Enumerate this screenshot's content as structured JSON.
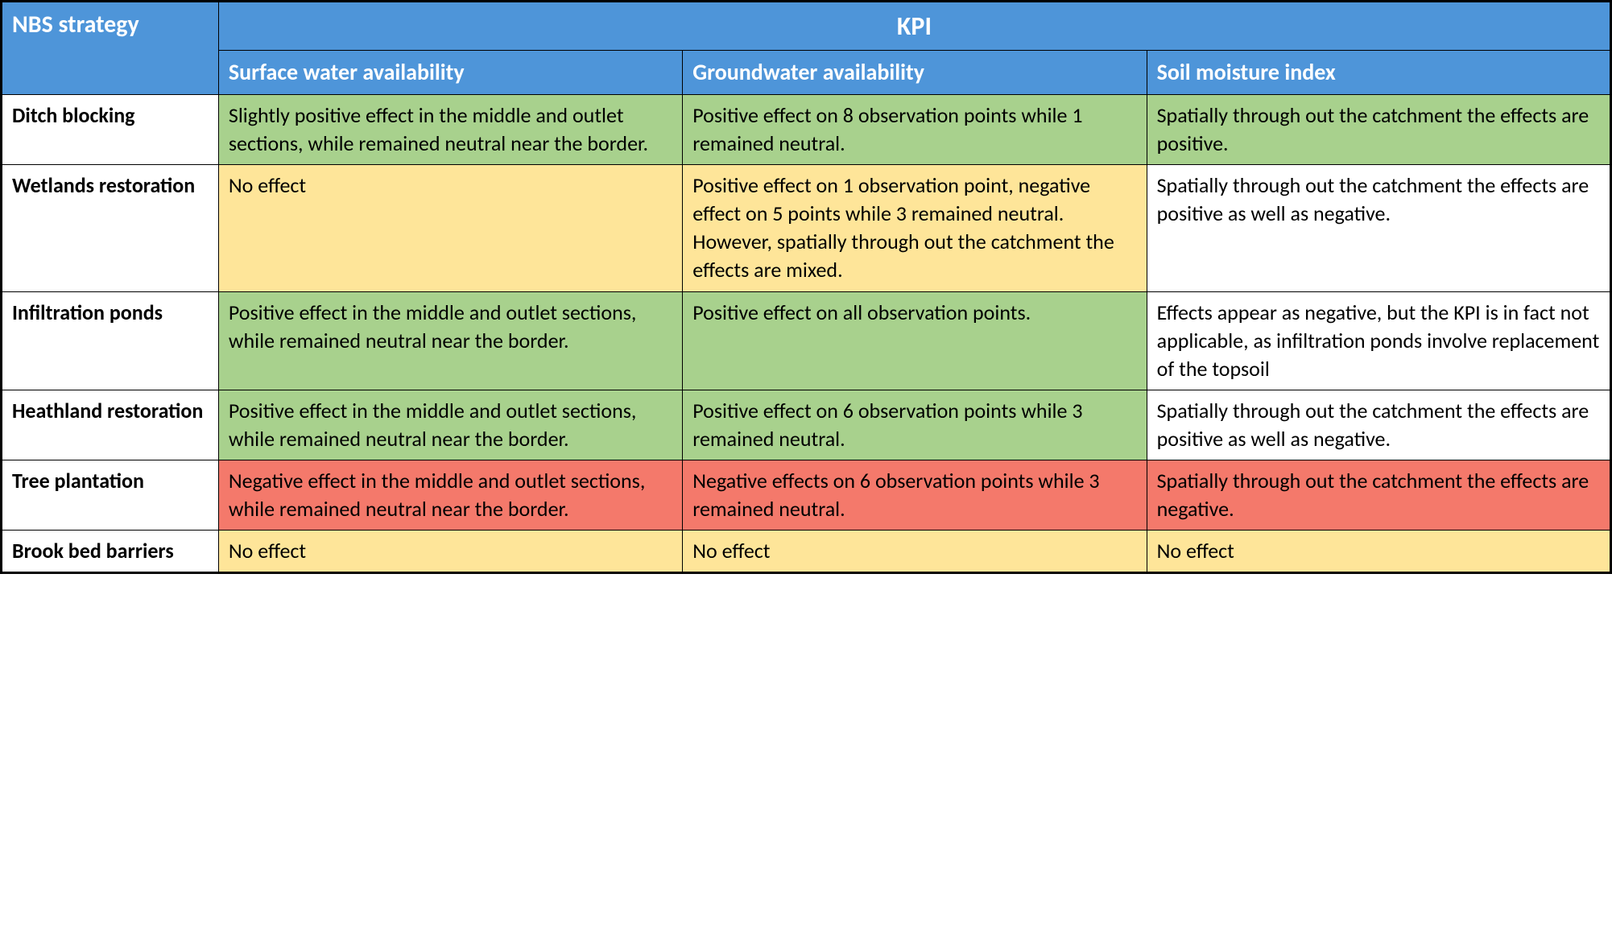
{
  "table": {
    "type": "table",
    "colors": {
      "header_bg": "#4e95d9",
      "header_text": "#ffffff",
      "green": "#a8d18d",
      "yellow": "#fee599",
      "red": "#f4796b",
      "white": "#ffffff",
      "border": "#000000",
      "text": "#000000"
    },
    "typography": {
      "font_family": "Calibri",
      "header_main_fontsize": 32,
      "header_sub_fontsize": 28,
      "cell_fontsize": 26,
      "header_weight": "bold",
      "strategy_weight": "bold"
    },
    "column_widths_pct": [
      13.5,
      28.83,
      28.83,
      28.83
    ],
    "headers": {
      "nbs_strategy": "NBS strategy",
      "kpi": "KPI",
      "surface_water": "Surface water availability",
      "groundwater": "Groundwater availability",
      "soil_moisture": "Soil moisture index"
    },
    "rows": [
      {
        "strategy": "Ditch blocking",
        "cells": [
          {
            "text": "Slightly positive effect in the middle and outlet sections, while remained neutral near the border.",
            "color": "green"
          },
          {
            "text": "Positive effect on 8 observation points while 1 remained neutral.",
            "color": "green"
          },
          {
            "text": "Spatially through out the catchment the effects are positive.",
            "color": "green"
          }
        ]
      },
      {
        "strategy": "Wetlands restoration",
        "cells": [
          {
            "text": "No effect",
            "color": "yellow"
          },
          {
            "text": "Positive effect on 1 observation point, negative effect on 5 points while 3 remained neutral. However, spatially through out the catchment the effects are mixed.",
            "color": "yellow"
          },
          {
            "text": "Spatially through out the catchment the effects are positive as well as negative.",
            "color": "white"
          }
        ]
      },
      {
        "strategy": "Infiltration ponds",
        "cells": [
          {
            "text": "Positive effect in the middle and outlet sections, while remained neutral near the border.",
            "color": "green"
          },
          {
            "text": "Positive effect on all observation points.",
            "color": "green"
          },
          {
            "text": "Effects appear as negative, but the KPI is in fact not applicable, as infiltration ponds involve replacement of the topsoil",
            "color": "white"
          }
        ]
      },
      {
        "strategy": "Heathland restoration",
        "cells": [
          {
            "text": "Positive effect in the middle and outlet sections, while remained neutral near the border.",
            "color": "green"
          },
          {
            "text": "Positive effect on 6 observation points while 3 remained neutral.",
            "color": "green"
          },
          {
            "text": "Spatially through out the catchment the effects are positive as well as negative.",
            "color": "white"
          }
        ]
      },
      {
        "strategy": "Tree plantation",
        "cells": [
          {
            "text": "Negative effect in the middle and outlet sections, while remained neutral near the border.",
            "color": "red"
          },
          {
            "text": "Negative effects on 6 observation points while 3 remained neutral.",
            "color": "red"
          },
          {
            "text": "Spatially through out the catchment the effects are negative.",
            "color": "red"
          }
        ]
      },
      {
        "strategy": "Brook bed barriers",
        "cells": [
          {
            "text": "No effect",
            "color": "yellow"
          },
          {
            "text": "No effect",
            "color": "yellow"
          },
          {
            "text": "No effect",
            "color": "yellow"
          }
        ]
      }
    ]
  }
}
